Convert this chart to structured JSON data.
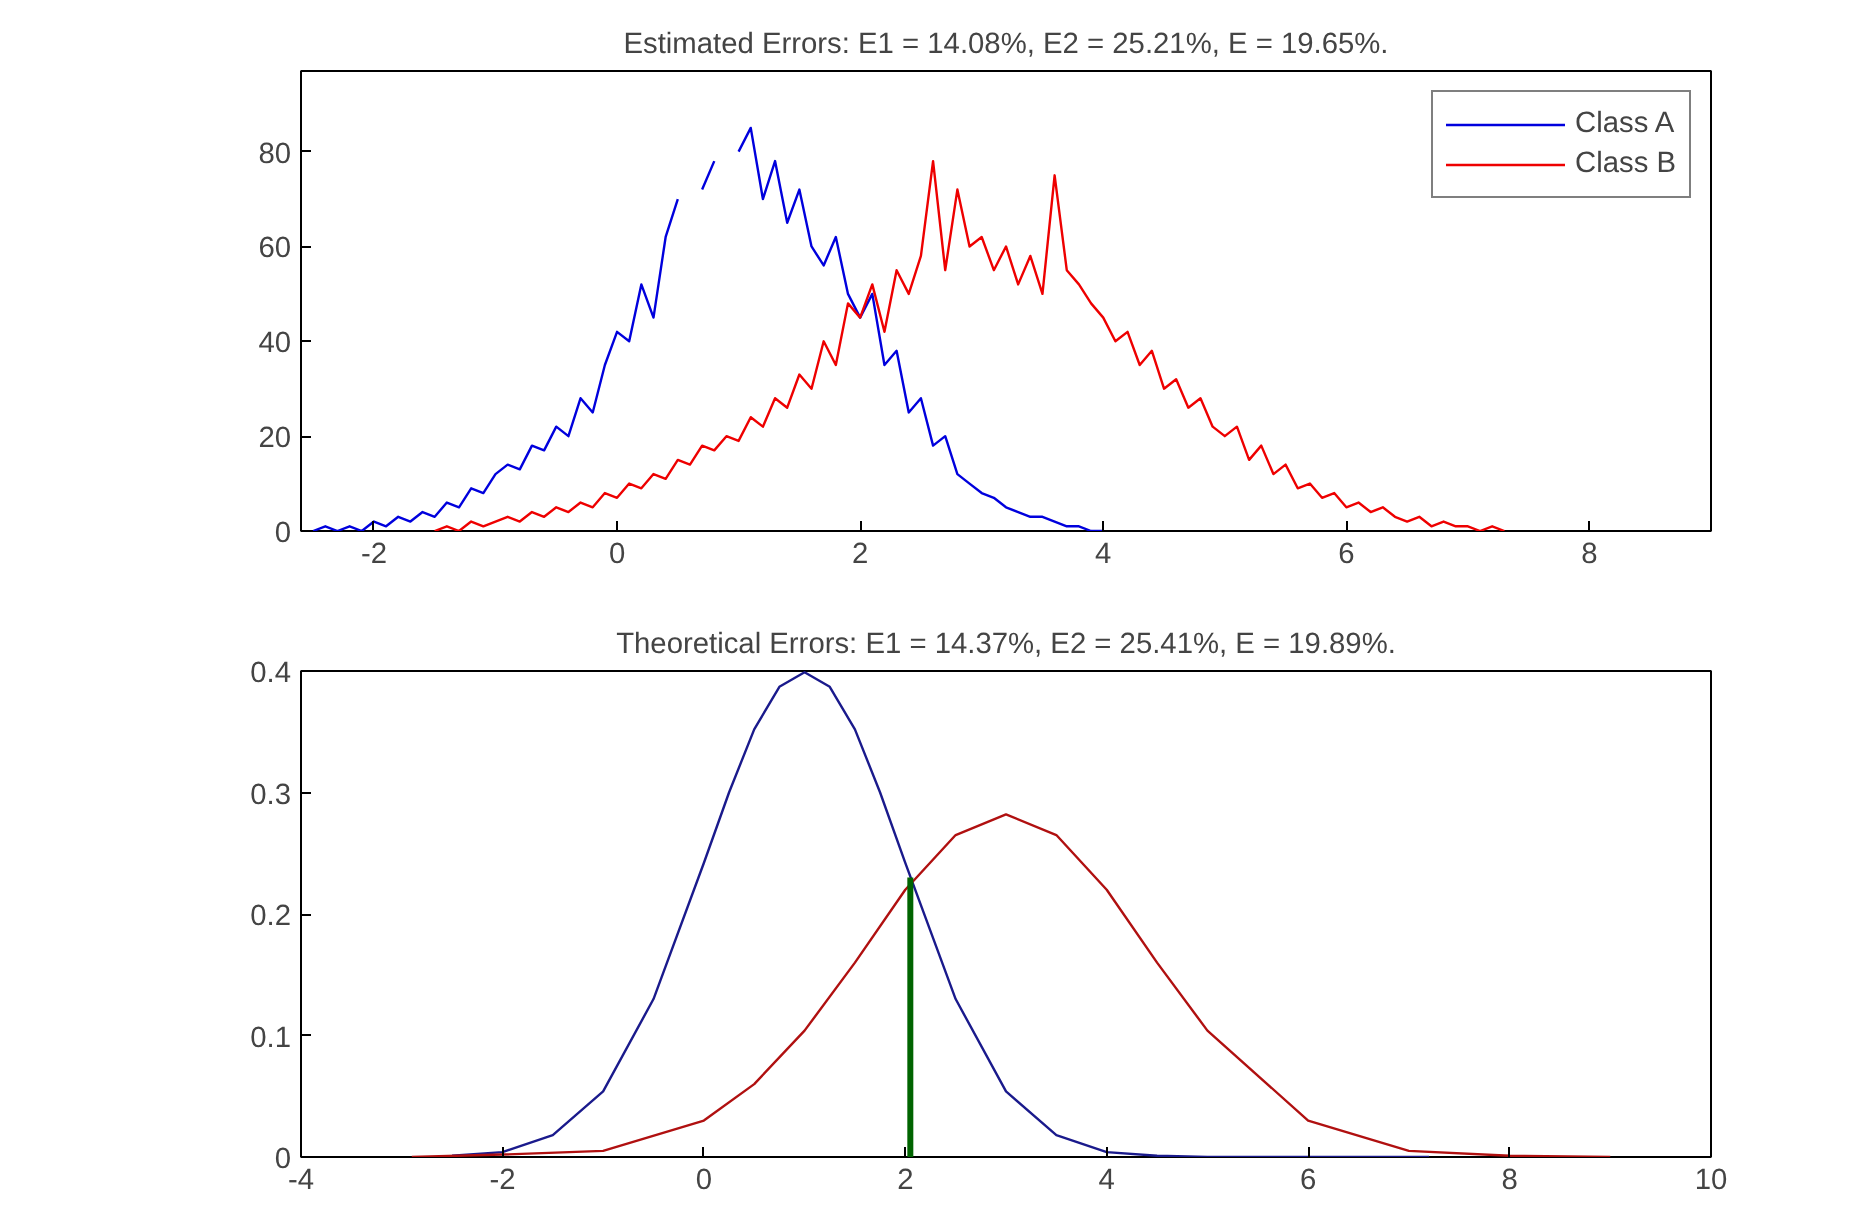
{
  "chart_data": [
    {
      "type": "line",
      "title": "Estimated Errors: E1 = 14.08%, E2 = 25.21%, E = 19.65%.",
      "xlim": [
        -2.6,
        9.0
      ],
      "xticks": [
        -2,
        0,
        2,
        4,
        6,
        8
      ],
      "ylim": [
        0,
        97
      ],
      "yticks": [
        0,
        20,
        40,
        60,
        80
      ],
      "grid": false,
      "legend": "top right",
      "marker": "none",
      "line_style": "solid",
      "series": [
        {
          "name": "Class A",
          "color": "#0000dd",
          "x": [
            -2.5,
            -2.4,
            -2.3,
            -2.2,
            -2.1,
            -2.0,
            -1.9,
            -1.8,
            -1.7,
            -1.6,
            -1.5,
            -1.4,
            -1.3,
            -1.2,
            -1.1,
            -1.0,
            -0.9,
            -0.8,
            -0.7,
            -0.6,
            -0.5,
            -0.4,
            -0.3,
            -0.2,
            -0.1,
            0.0,
            0.1,
            0.2,
            0.3,
            0.4,
            0.5,
            0.6,
            0.7,
            0.8,
            0.9,
            1.0,
            1.1,
            1.2,
            1.3,
            1.4,
            1.5,
            1.6,
            1.7,
            1.8,
            1.9,
            2.0,
            2.1,
            2.2,
            2.3,
            2.4,
            2.5,
            2.6,
            2.7,
            2.8,
            2.9,
            3.0,
            3.1,
            3.2,
            3.3,
            3.4,
            3.5,
            3.6,
            3.7,
            3.8,
            3.9,
            4.0
          ],
          "values": [
            0,
            1,
            0,
            1,
            0,
            2,
            1,
            3,
            2,
            4,
            3,
            6,
            5,
            9,
            8,
            12,
            14,
            13,
            18,
            17,
            22,
            20,
            28,
            25,
            35,
            42,
            40,
            52,
            45,
            62,
            70,
            null,
            72,
            78,
            null,
            80,
            85,
            70,
            78,
            65,
            72,
            60,
            56,
            62,
            50,
            45,
            50,
            35,
            38,
            25,
            28,
            18,
            20,
            12,
            10,
            8,
            7,
            5,
            4,
            3,
            3,
            2,
            1,
            1,
            0,
            0
          ]
        },
        {
          "name": "Class B",
          "color": "#ee0000",
          "x": [
            -1.5,
            -1.4,
            -1.3,
            -1.2,
            -1.1,
            -1.0,
            -0.9,
            -0.8,
            -0.7,
            -0.6,
            -0.5,
            -0.4,
            -0.3,
            -0.2,
            -0.1,
            0.0,
            0.1,
            0.2,
            0.3,
            0.4,
            0.5,
            0.6,
            0.7,
            0.8,
            0.9,
            1.0,
            1.1,
            1.2,
            1.3,
            1.4,
            1.5,
            1.6,
            1.7,
            1.8,
            1.9,
            2.0,
            2.1,
            2.2,
            2.3,
            2.4,
            2.5,
            2.6,
            2.7,
            2.8,
            2.9,
            3.0,
            3.1,
            3.2,
            3.3,
            3.4,
            3.5,
            3.6,
            3.7,
            3.8,
            3.9,
            4.0,
            4.1,
            4.2,
            4.3,
            4.4,
            4.5,
            4.6,
            4.7,
            4.8,
            4.9,
            5.0,
            5.1,
            5.2,
            5.3,
            5.4,
            5.5,
            5.6,
            5.7,
            5.8,
            5.9,
            6.0,
            6.1,
            6.2,
            6.3,
            6.4,
            6.5,
            6.6,
            6.7,
            6.8,
            6.9,
            7.0,
            7.1,
            7.2,
            7.3
          ],
          "values": [
            0,
            1,
            0,
            2,
            1,
            2,
            3,
            2,
            4,
            3,
            5,
            4,
            6,
            5,
            8,
            7,
            10,
            9,
            12,
            11,
            15,
            14,
            18,
            17,
            20,
            19,
            24,
            22,
            28,
            26,
            33,
            30,
            40,
            35,
            48,
            45,
            52,
            42,
            55,
            50,
            58,
            78,
            55,
            72,
            60,
            62,
            55,
            60,
            52,
            58,
            50,
            75,
            55,
            52,
            48,
            45,
            40,
            42,
            35,
            38,
            30,
            32,
            26,
            28,
            22,
            20,
            22,
            15,
            18,
            12,
            14,
            9,
            10,
            7,
            8,
            5,
            6,
            4,
            5,
            3,
            2,
            3,
            1,
            2,
            1,
            1,
            0,
            1,
            0
          ]
        }
      ]
    },
    {
      "type": "line",
      "title": "Theoretical Errors: E1 = 14.37%, E2 = 25.41%, E = 19.89%.",
      "xlim": [
        -4,
        10
      ],
      "xticks": [
        -4,
        -2,
        0,
        2,
        4,
        6,
        8,
        10
      ],
      "ylim": [
        0,
        0.4
      ],
      "yticks": [
        0,
        0.1,
        0.2,
        0.3,
        0.4
      ],
      "grid": false,
      "marker": "none",
      "line_style": "solid",
      "series": [
        {
          "color": "#1a1a8c",
          "x": [
            -2.5,
            -2,
            -1.5,
            -1,
            -0.5,
            0,
            0.25,
            0.5,
            0.75,
            1,
            1.25,
            1.5,
            1.75,
            2,
            2.5,
            3,
            3.5,
            4,
            4.5,
            5,
            7.2
          ],
          "values": [
            0.001,
            0.004,
            0.018,
            0.054,
            0.13,
            0.242,
            0.3,
            0.352,
            0.387,
            0.399,
            0.387,
            0.352,
            0.3,
            0.242,
            0.13,
            0.054,
            0.018,
            0.004,
            0.001,
            0,
            0
          ]
        },
        {
          "color": "#b01010",
          "x": [
            -2.9,
            -2,
            -1,
            0,
            0.5,
            1,
            1.5,
            2,
            2.5,
            3,
            3.5,
            4,
            4.5,
            5,
            6,
            7,
            8,
            9
          ],
          "values": [
            0,
            0.002,
            0.005,
            0.03,
            0.06,
            0.104,
            0.16,
            0.22,
            0.265,
            0.282,
            0.265,
            0.22,
            0.16,
            0.104,
            0.03,
            0.005,
            0.001,
            0
          ]
        },
        {
          "color": "#006400",
          "x": [
            2.05,
            2.05
          ],
          "values": [
            0,
            0.23
          ]
        }
      ]
    }
  ]
}
